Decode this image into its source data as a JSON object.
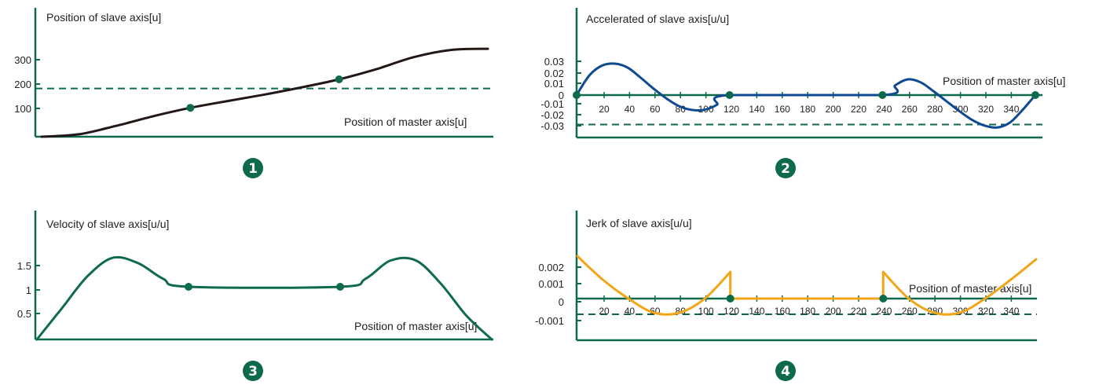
{
  "colors": {
    "axis": "#0e6a4c",
    "position": "#231815",
    "velocity": "#0e6a4c",
    "acceleration": "#0d4a92",
    "jerk": "#f2a516",
    "marker": "#0e6a4c"
  },
  "chart_data": [
    {
      "id": "position",
      "type": "line",
      "badge": "1",
      "ylabel": "Position of slave axis[u]",
      "xlabel": "Position of master axis[u]",
      "y_ticks": [
        "300",
        "200",
        "100"
      ],
      "x_ticks": [],
      "reference_line": 200,
      "x": [
        0,
        30,
        60,
        90,
        120,
        150,
        180,
        210,
        240,
        270,
        300,
        330,
        360
      ],
      "y": [
        0,
        10,
        45,
        85,
        120,
        148,
        175,
        205,
        238,
        280,
        330,
        360,
        365
      ],
      "markers": [
        [
          120,
          120
        ],
        [
          240,
          238
        ]
      ]
    },
    {
      "id": "acceleration",
      "type": "line",
      "badge": "2",
      "ylabel": "Accelerated of slave axis[u/u]",
      "xlabel": "Position of master axis[u]",
      "y_ticks": [
        "0.03",
        "0.02",
        "0.01",
        "0",
        "-0.01",
        "-0.02",
        "-0.03"
      ],
      "x_ticks": [
        "20",
        "40",
        "60",
        "80",
        "100",
        "120",
        "140",
        "160",
        "180",
        "200",
        "220",
        "240",
        "260",
        "280",
        "300",
        "320",
        "340"
      ],
      "reference_line": -0.03,
      "x": [
        0,
        10,
        20,
        30,
        40,
        50,
        60,
        70,
        80,
        90,
        100,
        110,
        120,
        240,
        250,
        260,
        270,
        280,
        290,
        300,
        310,
        320,
        330,
        340,
        350,
        360
      ],
      "y": [
        0,
        0.02,
        0.03,
        0.032,
        0.028,
        0.018,
        0.007,
        -0.003,
        -0.011,
        -0.015,
        -0.015,
        -0.01,
        0,
        0,
        0.01,
        0.016,
        0.013,
        0.004,
        -0.006,
        -0.016,
        -0.025,
        -0.031,
        -0.033,
        -0.028,
        -0.015,
        0
      ],
      "markers": [
        [
          0,
          0
        ],
        [
          120,
          0
        ],
        [
          240,
          0
        ],
        [
          360,
          0
        ]
      ]
    },
    {
      "id": "velocity",
      "type": "line",
      "badge": "3",
      "ylabel": "Velocity of slave axis[u/u]",
      "xlabel": "Position of master axis[u]",
      "y_ticks": [
        "1.5",
        "1",
        "0.5"
      ],
      "x_ticks": [],
      "reference_line": null,
      "x": [
        0,
        20,
        40,
        60,
        80,
        100,
        120,
        240,
        260,
        280,
        300,
        320,
        340,
        360
      ],
      "y": [
        0,
        0.6,
        1.2,
        1.55,
        1.45,
        1.15,
        1.0,
        1.0,
        1.15,
        1.5,
        1.5,
        1.05,
        0.45,
        0
      ],
      "markers": [
        [
          120,
          1.0
        ],
        [
          240,
          1.0
        ]
      ]
    },
    {
      "id": "jerk",
      "type": "line",
      "badge": "4",
      "ylabel": "Jerk of slave axis[u/u]",
      "xlabel": "Position of master axis[u]",
      "y_ticks": [
        "0.002",
        "0.001",
        "0",
        "-0.001"
      ],
      "x_ticks": [
        "20",
        "40",
        "60",
        "80",
        "100",
        "120",
        "140",
        "160",
        "180",
        "200",
        "220",
        "240",
        "260",
        "280",
        "300",
        "320",
        "340"
      ],
      "reference_line": -0.001,
      "x": [
        0,
        20,
        40,
        60,
        80,
        100,
        120,
        120,
        240,
        240,
        260,
        280,
        300,
        320,
        340,
        360
      ],
      "y": [
        0.0027,
        0.0012,
        0,
        -0.0009,
        -0.0009,
        0,
        0.0017,
        0,
        0,
        0.0017,
        0,
        -0.0009,
        -0.0009,
        0,
        0.0012,
        0.0025
      ],
      "markers": [
        [
          120,
          0
        ],
        [
          240,
          0
        ]
      ]
    }
  ]
}
